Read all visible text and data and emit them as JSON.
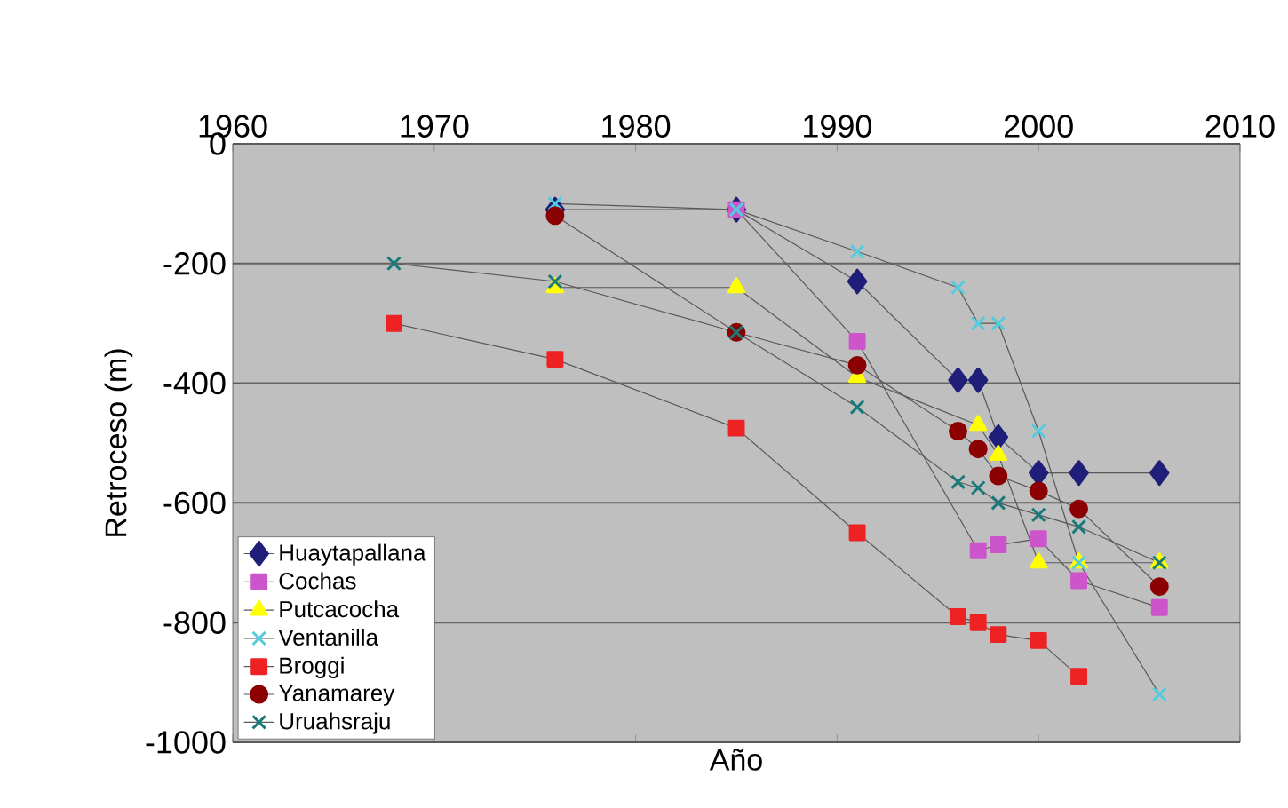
{
  "chart_data": {
    "type": "line",
    "xlabel": "Año",
    "ylabel": "Retroceso (m)",
    "xlim": [
      1960,
      2010
    ],
    "xticks": [
      1960,
      1970,
      1980,
      1990,
      2000,
      2010
    ],
    "ylim": [
      -1000,
      0
    ],
    "yticks": [
      -1000,
      -800,
      -600,
      -400,
      -200,
      0
    ],
    "grid": "y",
    "legend": "bottom left",
    "series": [
      {
        "name": "Huaytapallana",
        "color": "#1f1f7a",
        "marker": "diamond",
        "x": [
          1976,
          1985,
          1991,
          1996,
          1997,
          1998,
          2000,
          2002,
          2006
        ],
        "values": [
          -110,
          -110,
          -230,
          -395,
          -395,
          -490,
          -550,
          -550,
          -550
        ]
      },
      {
        "name": "Cochas",
        "color": "#cc55cc",
        "marker": "square",
        "x": [
          1985,
          1991,
          1997,
          1998,
          2000,
          2002,
          2006
        ],
        "values": [
          -110,
          -330,
          -680,
          -670,
          -660,
          -730,
          -775
        ]
      },
      {
        "name": "Putcacocha",
        "color": "#ffff00",
        "marker": "triangle",
        "x": [
          1976,
          1985,
          1991,
          1997,
          1998,
          2000,
          2002,
          2006
        ],
        "values": [
          -240,
          -240,
          -390,
          -470,
          -520,
          -700,
          -700,
          -700
        ]
      },
      {
        "name": "Ventanilla",
        "color": "#55ccdd",
        "marker": "cross",
        "x": [
          1976,
          1985,
          1991,
          1996,
          1997,
          1998,
          2000,
          2002,
          2006
        ],
        "values": [
          -100,
          -110,
          -180,
          -240,
          -300,
          -300,
          -480,
          -700,
          -920
        ]
      },
      {
        "name": "Broggi",
        "color": "#ee2222",
        "marker": "square",
        "x": [
          1968,
          1976,
          1985,
          1991,
          1996,
          1997,
          1998,
          2000,
          2002
        ],
        "values": [
          -300,
          -360,
          -475,
          -650,
          -790,
          -800,
          -820,
          -830,
          -890
        ]
      },
      {
        "name": "Yanamarey",
        "color": "#8b0000",
        "marker": "circle",
        "x": [
          1976,
          1985,
          1991,
          1996,
          1997,
          1998,
          2000,
          2002,
          2006
        ],
        "values": [
          -120,
          -315,
          -370,
          -480,
          -510,
          -555,
          -580,
          -610,
          -740
        ]
      },
      {
        "name": "Uruahsraju",
        "color": "#1a7a7a",
        "marker": "cross",
        "x": [
          1968,
          1976,
          1985,
          1991,
          1996,
          1997,
          1998,
          2000,
          2002,
          2006
        ],
        "values": [
          -200,
          -230,
          -315,
          -440,
          -565,
          -575,
          -600,
          -620,
          -640,
          -700
        ]
      }
    ]
  }
}
